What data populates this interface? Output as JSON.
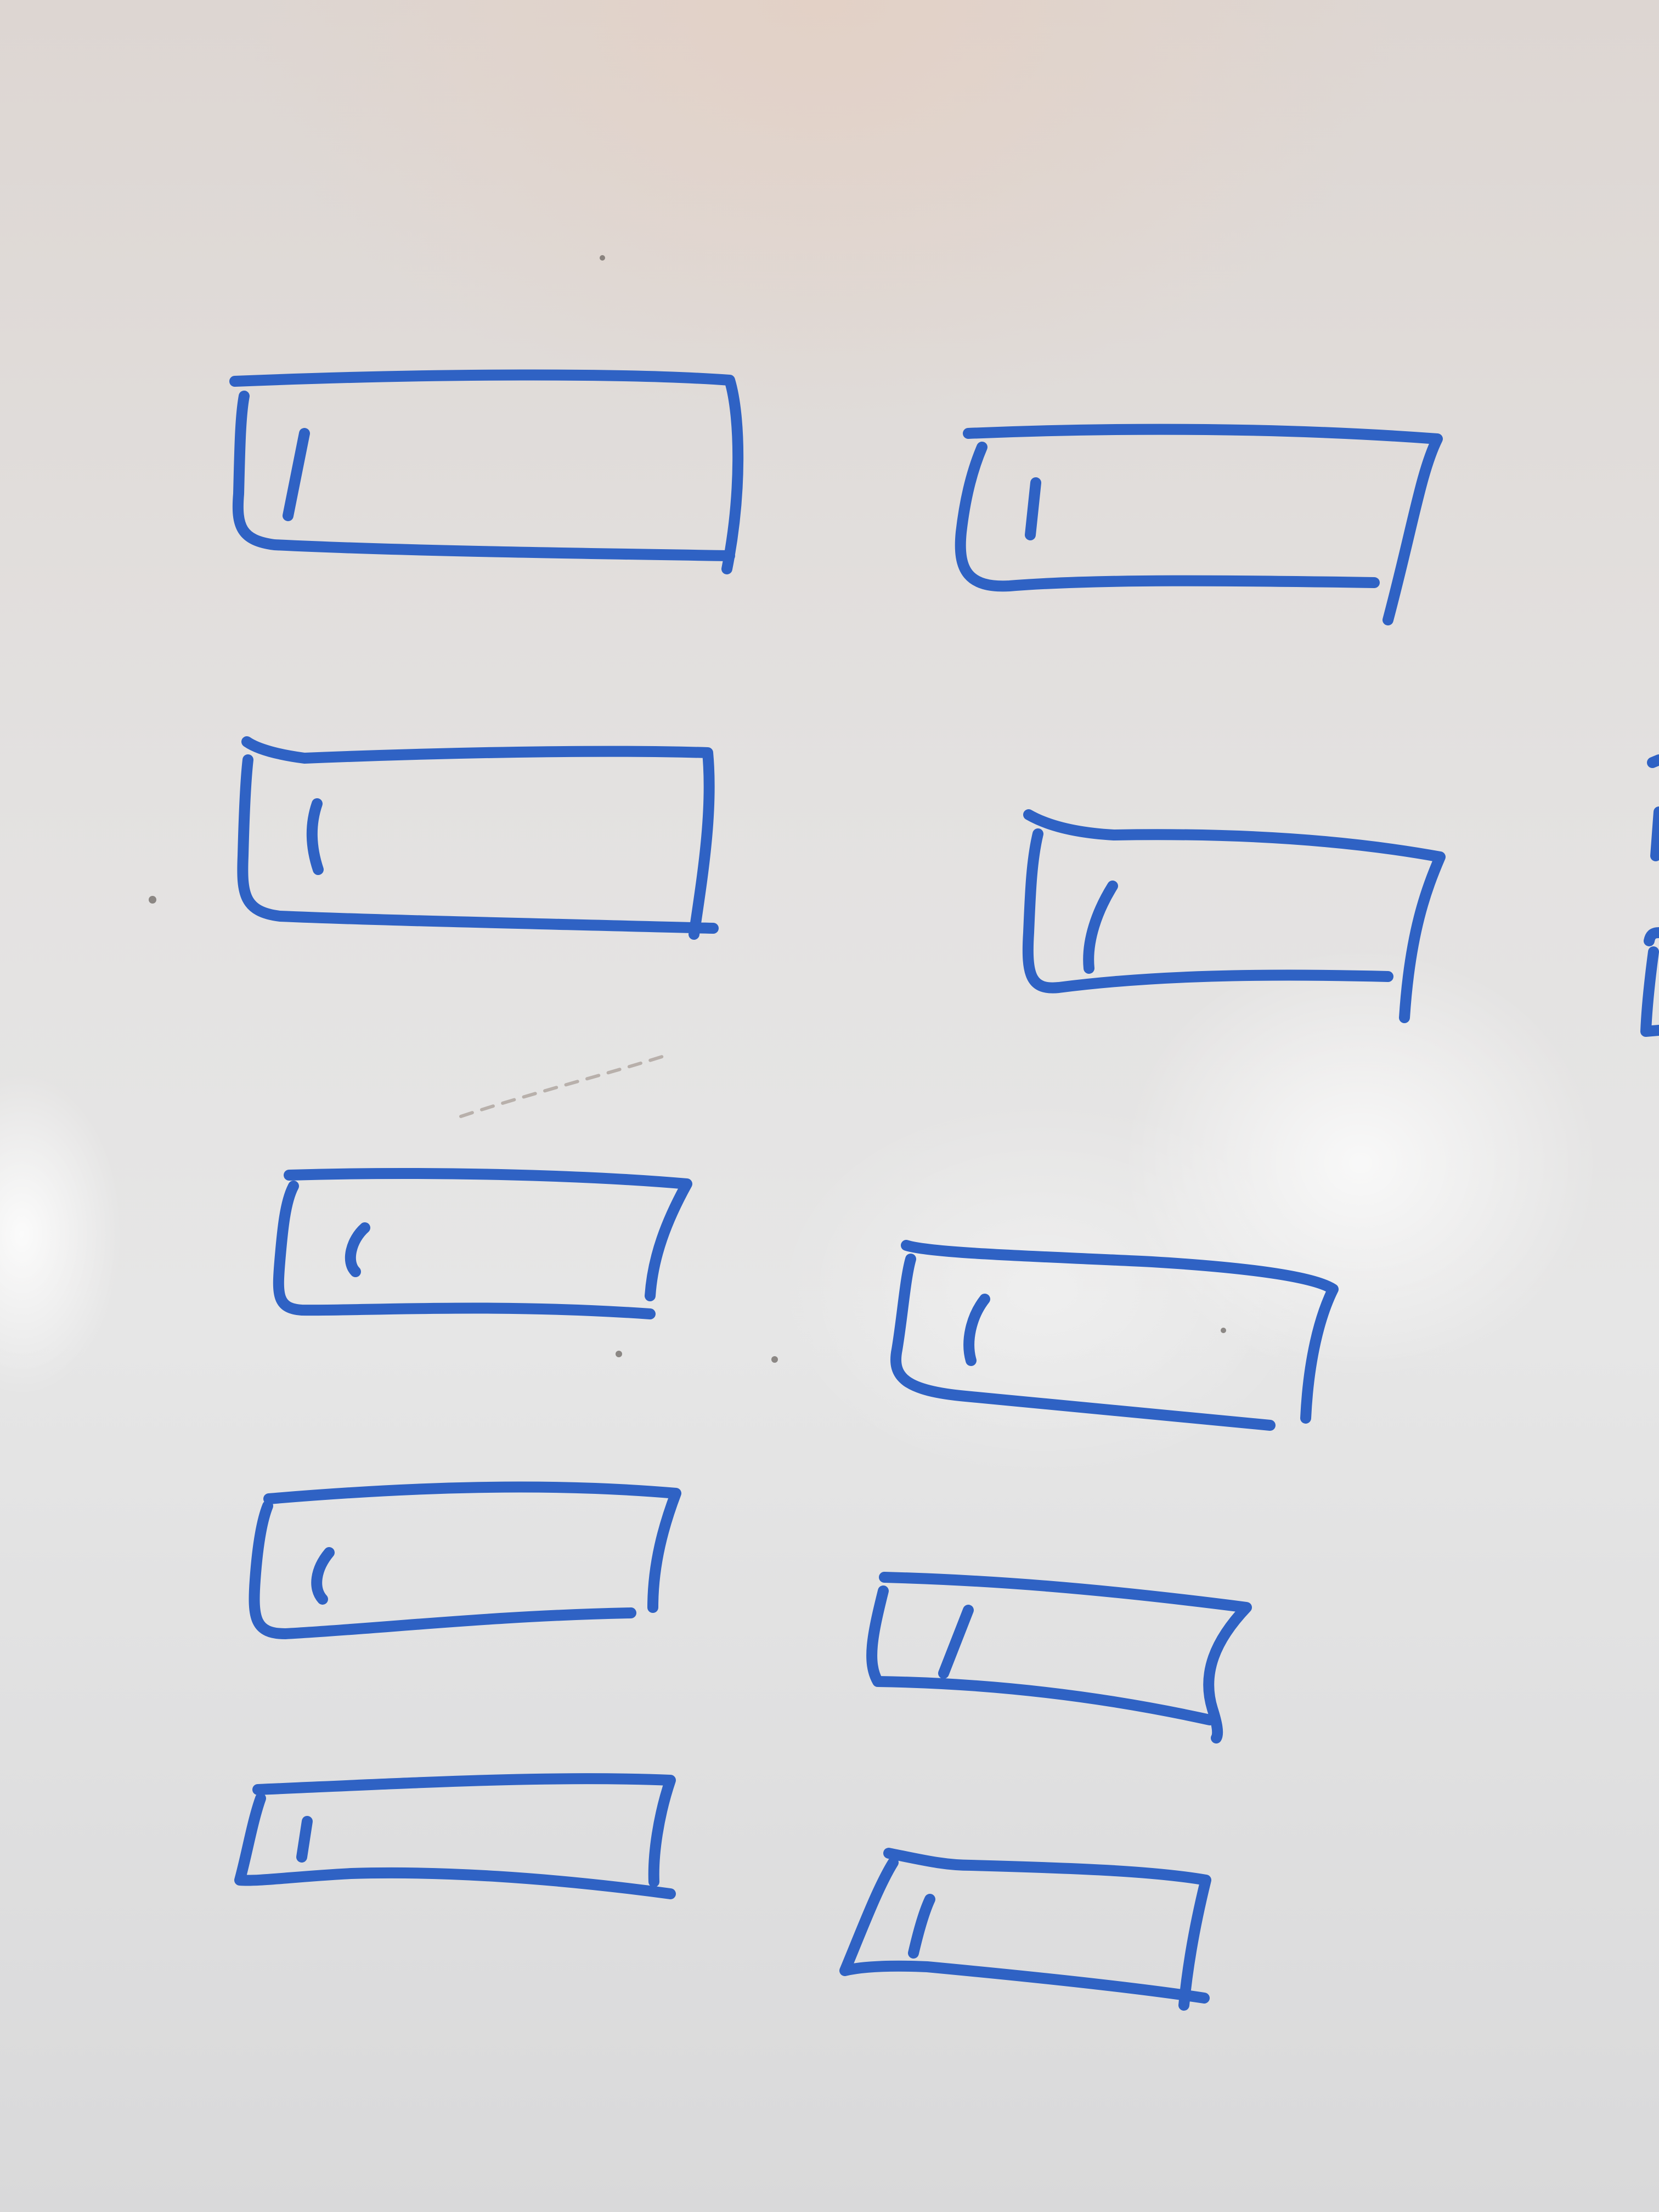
{
  "scene": {
    "subject": "whiteboard",
    "ink_color": "#2f62c4",
    "board_color": "#e4e2e0"
  },
  "sketch": {
    "box_count": 11,
    "box_mark": "1"
  }
}
